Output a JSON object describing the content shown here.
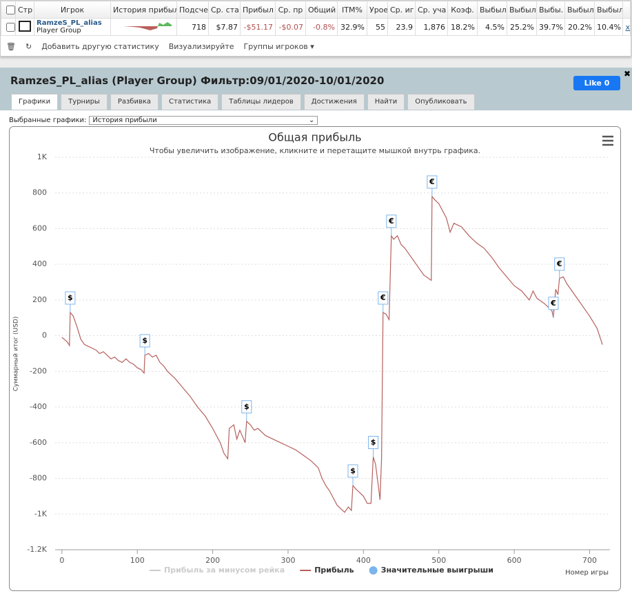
{
  "table": {
    "headers": [
      "Стр",
      "Игрок",
      "История прибыл",
      "Подсче",
      "Ср. ста",
      "Прибыл",
      "Ср. пр",
      "Общий",
      "ITM%",
      "Урое",
      "Ср. иг",
      "Ср. уча",
      "Коэф.",
      "Выбыл",
      "Выбыл",
      "Выбы.",
      "Выбыл",
      "Выбыл"
    ],
    "player_name": "RamzeS_PL_alias",
    "player_group": "Player Group",
    "stats": [
      "718",
      "$7.87",
      "-$51.17",
      "-$0.07",
      "-0.8%",
      "32.9%",
      "55",
      "23.9",
      "1,876",
      "18.2%",
      "4.5%",
      "25.2%",
      "39.7%",
      "20.2%",
      "10.4%"
    ],
    "remove": "x"
  },
  "toolbar": [
    "Добавить другую статистику",
    "Визуализируйте",
    "Группы игроков"
  ],
  "panel": {
    "title": "RamzeS_PL_alias (Player Group) Фильтр:09/01/2020-10/01/2020",
    "like": "Like 0",
    "tabs": [
      "Графики",
      "Турниры",
      "Разбивка",
      "Статистика",
      "Таблицы лидеров",
      "Достижения",
      "Найти",
      "Опубликовать"
    ],
    "selector_label": "Выбранные графики:",
    "selector_value": "История прибыли"
  },
  "chart_data": {
    "type": "line",
    "title": "Общая прибыль",
    "subtitle": "Чтобы увеличить изображение, кликните и перетащите мышкой внутрь графика.",
    "y_label": "Суммарный итог (USD)",
    "x_label": "Номер игры",
    "xlim": [
      -9,
      727
    ],
    "xticks": [
      0,
      100,
      200,
      300,
      400,
      500,
      600,
      700
    ],
    "ylim": [
      -1200,
      1000
    ],
    "yticks": [
      {
        "value": -1200,
        "label": "-1.2K"
      },
      {
        "value": -1000,
        "label": "-1K"
      },
      -800,
      -600,
      -400,
      -200,
      0,
      200,
      400,
      600,
      800,
      {
        "value": 1000,
        "label": "1K"
      }
    ],
    "grid": true,
    "x": [
      0,
      3,
      7,
      10,
      11,
      15,
      20,
      25,
      30,
      35,
      40,
      45,
      50,
      55,
      60,
      65,
      70,
      75,
      80,
      85,
      90,
      95,
      100,
      105,
      109,
      110,
      115,
      120,
      125,
      130,
      135,
      140,
      150,
      160,
      170,
      180,
      190,
      200,
      210,
      215,
      220,
      222,
      228,
      232,
      236,
      240,
      243,
      245,
      250,
      255,
      260,
      270,
      280,
      290,
      300,
      310,
      320,
      330,
      340,
      345,
      350,
      355,
      360,
      365,
      370,
      375,
      380,
      384,
      386,
      390,
      395,
      400,
      405,
      410,
      413,
      416,
      420,
      422,
      424,
      426,
      430,
      434,
      437,
      440,
      445,
      450,
      455,
      460,
      470,
      480,
      490,
      491,
      495,
      500,
      510,
      515,
      520,
      525,
      530,
      540,
      550,
      560,
      570,
      580,
      590,
      600,
      610,
      620,
      625,
      630,
      640,
      650,
      652,
      655,
      658,
      660,
      665,
      670,
      680,
      690,
      700,
      710,
      717
    ],
    "series": [
      {
        "name": "Прибыль за минусом рейка",
        "color": "#cccccc",
        "visible": false
      },
      {
        "name": "Прибыль",
        "color": "#b5605c",
        "visible": true,
        "values": [
          -10,
          -20,
          -35,
          -55,
          130,
          110,
          50,
          -20,
          -50,
          -60,
          -70,
          -80,
          -100,
          -90,
          -110,
          -130,
          -120,
          -140,
          -150,
          -130,
          -150,
          -160,
          -180,
          -190,
          -210,
          -110,
          -100,
          -120,
          -110,
          -150,
          -170,
          -200,
          -240,
          -290,
          -340,
          -400,
          -450,
          -520,
          -600,
          -660,
          -690,
          -520,
          -500,
          -580,
          -530,
          -570,
          -600,
          -480,
          -500,
          -530,
          -520,
          -560,
          -580,
          -600,
          -620,
          -640,
          -670,
          -700,
          -740,
          -800,
          -840,
          -870,
          -910,
          -950,
          -970,
          -990,
          -960,
          -980,
          -840,
          -860,
          -880,
          -900,
          -940,
          -940,
          -680,
          -720,
          -850,
          -920,
          -690,
          130,
          120,
          90,
          560,
          540,
          560,
          510,
          490,
          460,
          400,
          340,
          310,
          780,
          760,
          740,
          660,
          580,
          630,
          620,
          610,
          560,
          520,
          490,
          440,
          380,
          330,
          280,
          250,
          200,
          250,
          210,
          180,
          140,
          100,
          260,
          230,
          320,
          330,
          290,
          230,
          170,
          110,
          40,
          -50
        ]
      }
    ],
    "flags": {
      "name": "Значительные выигрыши",
      "color": "#7cb5ec",
      "points": [
        {
          "x": 11,
          "label": "$"
        },
        {
          "x": 110,
          "label": "$"
        },
        {
          "x": 245,
          "label": "$"
        },
        {
          "x": 386,
          "label": "$"
        },
        {
          "x": 413,
          "label": "$"
        },
        {
          "x": 426,
          "label": "€"
        },
        {
          "x": 437,
          "label": "€"
        },
        {
          "x": 491,
          "label": "€"
        },
        {
          "x": 652,
          "label": "€"
        },
        {
          "x": 660,
          "label": "€"
        }
      ]
    }
  }
}
